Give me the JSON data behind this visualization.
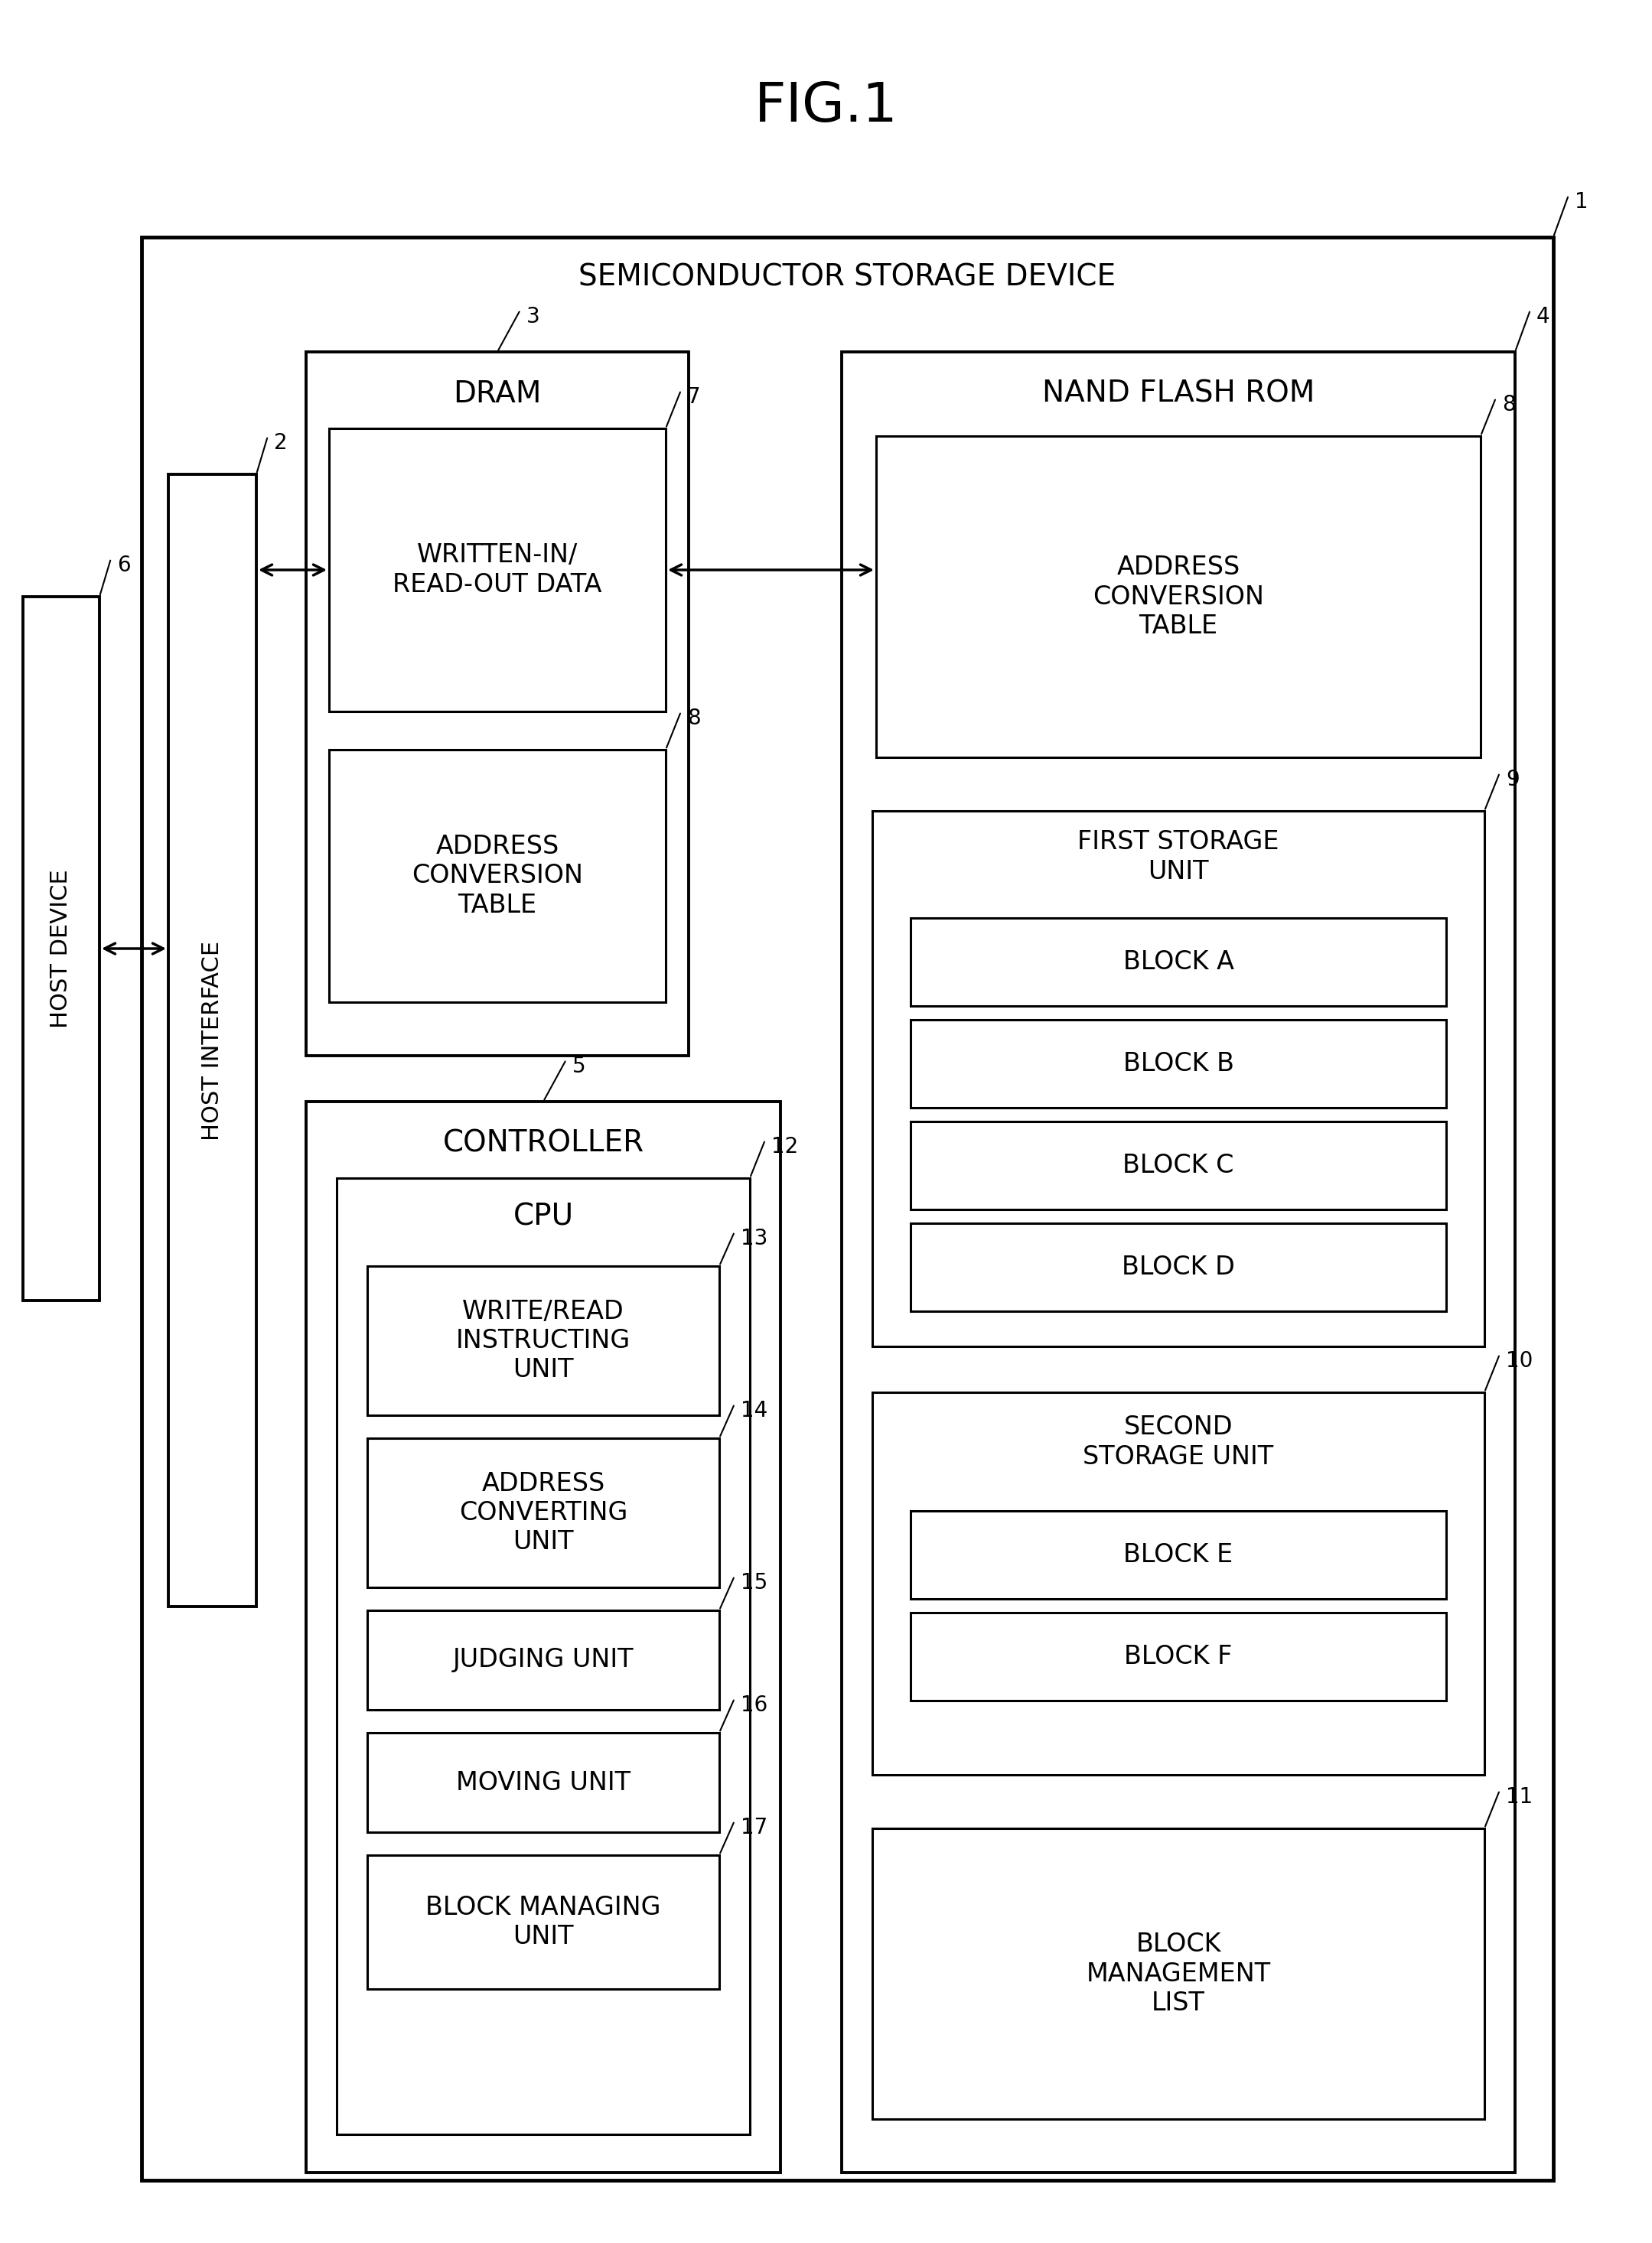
{
  "title": "FIG.1",
  "bg_color": "#ffffff",
  "line_color": "#000000",
  "labels": {
    "semiconductor_storage_device": "SEMICONDUCTOR STORAGE DEVICE",
    "dram": "DRAM",
    "nand_flash_rom": "NAND FLASH ROM",
    "written_in_read_out_data": "WRITTEN-IN/\nREAD-OUT DATA",
    "address_conversion_table_dram": "ADDRESS\nCONVERSION\nTABLE",
    "address_conversion_table_nand": "ADDRESS\nCONVERSION\nTABLE",
    "first_storage_unit": "FIRST STORAGE\nUNIT",
    "block_a": "BLOCK A",
    "block_b": "BLOCK B",
    "block_c": "BLOCK C",
    "block_d": "BLOCK D",
    "second_storage_unit": "SECOND\nSTORAGE UNIT",
    "block_e": "BLOCK E",
    "block_f": "BLOCK F",
    "block_management_list": "BLOCK\nMANAGEMENT\nLIST",
    "controller": "CONTROLLER",
    "cpu": "CPU",
    "write_read_instructing_unit": "WRITE/READ\nINSTRUCTING\nUNIT",
    "address_converting_unit": "ADDRESS\nCONVERTING\nUNIT",
    "judging_unit": "JUDGING UNIT",
    "moving_unit": "MOVING UNIT",
    "block_managing_unit": "BLOCK MANAGING\nUNIT",
    "host_interface": "HOST INTERFACE",
    "host_device": "HOST DEVICE"
  }
}
